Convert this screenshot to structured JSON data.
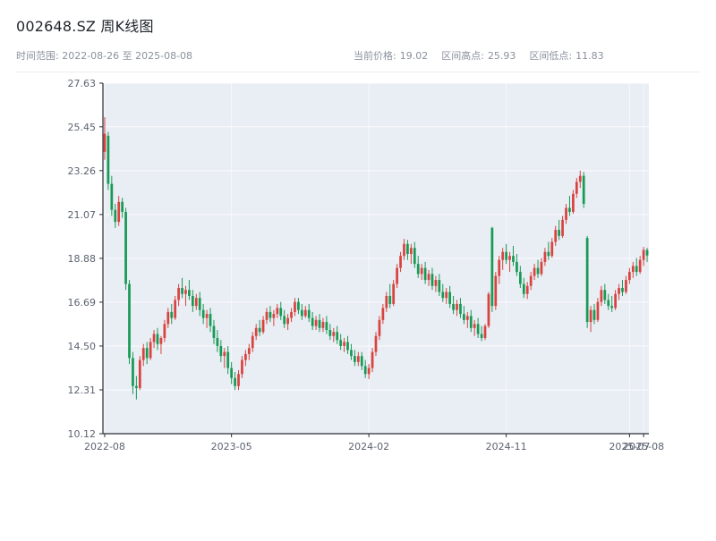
{
  "header": {
    "title": "002648.SZ 周K线图",
    "time_range": "时间范围: 2022-08-26 至 2025-08-08",
    "stats": [
      {
        "label": "当前价格:",
        "value": "19.02"
      },
      {
        "label": "区间高点:",
        "value": "25.93"
      },
      {
        "label": "区间低点:",
        "value": "11.83"
      }
    ]
  },
  "chart_data": {
    "type": "candlestick",
    "symbol": "002648.SZ",
    "title": "002648.SZ 周K线图",
    "frequency": "weekly",
    "date_start": "2022-08-26",
    "date_end": "2025-08-08",
    "current_price": 19.02,
    "range_high": 25.93,
    "range_low": 11.83,
    "y_min": 10.12,
    "y_max": 27.63,
    "y_ticks": [
      27.63,
      25.45,
      23.26,
      21.07,
      18.88,
      16.69,
      14.5,
      12.31,
      10.12
    ],
    "x_ticks": [
      {
        "index": 0,
        "label": "2022-08"
      },
      {
        "index": 36,
        "label": "2023-05"
      },
      {
        "index": 75,
        "label": "2024-02"
      },
      {
        "index": 114,
        "label": "2024-11"
      },
      {
        "index": 149,
        "label": "2025-07"
      },
      {
        "index": 153,
        "label": "2025-08"
      }
    ],
    "colors": {
      "up": "#d9433f",
      "down": "#179a55",
      "plot_bg": "#e9edf4",
      "grid": "#ffffff",
      "axis": "#2a2e34",
      "tick_text": "#5b6270"
    },
    "legend": {
      "up_means": "close >= open (red)",
      "down_means": "close < open (green)"
    },
    "candles": [
      [
        24.2,
        25.93,
        23.8,
        25.1
      ],
      [
        25.0,
        25.2,
        22.3,
        22.6
      ],
      [
        22.6,
        23.0,
        21.0,
        21.3
      ],
      [
        21.3,
        21.6,
        20.4,
        20.7
      ],
      [
        20.7,
        22.0,
        20.5,
        21.7
      ],
      [
        21.7,
        21.9,
        20.9,
        21.2
      ],
      [
        21.2,
        21.4,
        17.3,
        17.6
      ],
      [
        17.6,
        17.8,
        13.6,
        13.9
      ],
      [
        13.9,
        14.2,
        12.1,
        12.5
      ],
      [
        12.5,
        13.0,
        11.83,
        12.4
      ],
      [
        12.4,
        14.0,
        12.3,
        13.8
      ],
      [
        13.8,
        14.6,
        13.5,
        14.4
      ],
      [
        14.4,
        14.7,
        13.6,
        13.9
      ],
      [
        13.9,
        14.9,
        13.8,
        14.7
      ],
      [
        14.7,
        15.3,
        14.4,
        15.1
      ],
      [
        15.1,
        15.4,
        14.3,
        14.6
      ],
      [
        14.6,
        15.0,
        14.1,
        14.9
      ],
      [
        14.9,
        15.8,
        14.7,
        15.6
      ],
      [
        15.6,
        16.4,
        15.4,
        16.2
      ],
      [
        16.2,
        16.6,
        15.6,
        15.9
      ],
      [
        15.9,
        17.0,
        15.8,
        16.8
      ],
      [
        16.8,
        17.6,
        16.5,
        17.4
      ],
      [
        17.4,
        17.9,
        16.9,
        17.1
      ],
      [
        17.1,
        17.5,
        16.5,
        17.3
      ],
      [
        17.3,
        17.8,
        16.8,
        17.0
      ],
      [
        17.0,
        17.3,
        16.2,
        16.5
      ],
      [
        16.5,
        17.1,
        16.3,
        16.9
      ],
      [
        16.9,
        17.2,
        16.0,
        16.3
      ],
      [
        16.3,
        16.6,
        15.6,
        15.9
      ],
      [
        15.9,
        16.3,
        15.4,
        16.1
      ],
      [
        16.1,
        16.4,
        15.2,
        15.5
      ],
      [
        15.5,
        15.8,
        14.6,
        14.9
      ],
      [
        14.9,
        15.3,
        14.2,
        14.5
      ],
      [
        14.5,
        14.8,
        13.7,
        14.0
      ],
      [
        14.0,
        14.4,
        13.4,
        14.2
      ],
      [
        14.2,
        14.5,
        13.1,
        13.4
      ],
      [
        13.4,
        13.7,
        12.6,
        12.9
      ],
      [
        12.9,
        13.2,
        12.3,
        12.5
      ],
      [
        12.5,
        13.3,
        12.3,
        13.1
      ],
      [
        13.1,
        14.0,
        12.9,
        13.8
      ],
      [
        13.8,
        14.3,
        13.5,
        14.1
      ],
      [
        14.1,
        14.6,
        13.8,
        14.4
      ],
      [
        14.4,
        15.2,
        14.2,
        15.0
      ],
      [
        15.0,
        15.6,
        14.8,
        15.4
      ],
      [
        15.4,
        15.8,
        15.0,
        15.2
      ],
      [
        15.2,
        16.0,
        15.1,
        15.8
      ],
      [
        15.8,
        16.4,
        15.6,
        16.2
      ],
      [
        16.2,
        16.5,
        15.7,
        15.9
      ],
      [
        15.9,
        16.3,
        15.5,
        16.1
      ],
      [
        16.1,
        16.6,
        15.9,
        16.4
      ],
      [
        16.4,
        16.7,
        15.8,
        16.0
      ],
      [
        16.0,
        16.3,
        15.4,
        15.6
      ],
      [
        15.6,
        16.1,
        15.3,
        15.9
      ],
      [
        15.9,
        16.4,
        15.7,
        16.2
      ],
      [
        16.2,
        16.9,
        16.0,
        16.7
      ],
      [
        16.7,
        16.9,
        16.1,
        16.3
      ],
      [
        16.3,
        16.6,
        15.8,
        16.0
      ],
      [
        16.0,
        16.5,
        15.9,
        16.3
      ],
      [
        16.3,
        16.6,
        15.7,
        15.9
      ],
      [
        15.9,
        16.2,
        15.3,
        15.5
      ],
      [
        15.5,
        16.0,
        15.3,
        15.8
      ],
      [
        15.8,
        16.1,
        15.2,
        15.4
      ],
      [
        15.4,
        15.9,
        15.2,
        15.7
      ],
      [
        15.7,
        16.0,
        15.1,
        15.3
      ],
      [
        15.3,
        15.6,
        14.8,
        15.0
      ],
      [
        15.0,
        15.4,
        14.7,
        15.2
      ],
      [
        15.2,
        15.5,
        14.6,
        14.8
      ],
      [
        14.8,
        15.1,
        14.3,
        14.5
      ],
      [
        14.5,
        14.9,
        14.2,
        14.7
      ],
      [
        14.7,
        15.0,
        14.1,
        14.3
      ],
      [
        14.3,
        14.6,
        13.8,
        14.0
      ],
      [
        14.0,
        14.3,
        13.5,
        13.7
      ],
      [
        13.7,
        14.2,
        13.5,
        14.0
      ],
      [
        14.0,
        14.2,
        13.3,
        13.5
      ],
      [
        13.5,
        13.8,
        12.9,
        13.1
      ],
      [
        13.1,
        13.6,
        12.85,
        13.4
      ],
      [
        13.4,
        14.4,
        13.2,
        14.2
      ],
      [
        14.2,
        15.2,
        14.0,
        15.0
      ],
      [
        15.0,
        16.0,
        14.8,
        15.8
      ],
      [
        15.8,
        16.6,
        15.6,
        16.4
      ],
      [
        16.4,
        17.2,
        16.2,
        17.0
      ],
      [
        17.0,
        17.6,
        16.4,
        16.6
      ],
      [
        16.6,
        17.8,
        16.5,
        17.6
      ],
      [
        17.6,
        18.6,
        17.4,
        18.4
      ],
      [
        18.4,
        19.2,
        18.2,
        19.0
      ],
      [
        19.0,
        19.85,
        18.8,
        19.6
      ],
      [
        19.6,
        19.8,
        18.8,
        19.1
      ],
      [
        19.1,
        19.6,
        18.6,
        19.4
      ],
      [
        19.4,
        19.7,
        18.4,
        18.6
      ],
      [
        18.6,
        19.0,
        17.9,
        18.1
      ],
      [
        18.1,
        18.6,
        17.8,
        18.4
      ],
      [
        18.4,
        18.7,
        17.6,
        17.8
      ],
      [
        17.8,
        18.3,
        17.5,
        18.1
      ],
      [
        18.1,
        18.4,
        17.3,
        17.5
      ],
      [
        17.5,
        18.0,
        17.2,
        17.8
      ],
      [
        17.8,
        18.1,
        17.0,
        17.2
      ],
      [
        17.2,
        17.6,
        16.7,
        16.9
      ],
      [
        16.9,
        17.4,
        16.6,
        17.2
      ],
      [
        17.2,
        17.5,
        16.4,
        16.6
      ],
      [
        16.6,
        17.0,
        16.1,
        16.3
      ],
      [
        16.3,
        16.8,
        16.0,
        16.6
      ],
      [
        16.6,
        16.9,
        15.9,
        16.1
      ],
      [
        16.1,
        16.5,
        15.6,
        15.8
      ],
      [
        15.8,
        16.2,
        15.4,
        16.0
      ],
      [
        16.0,
        16.3,
        15.2,
        15.4
      ],
      [
        15.4,
        15.8,
        15.0,
        15.6
      ],
      [
        15.6,
        15.9,
        14.9,
        15.1
      ],
      [
        15.1,
        15.5,
        14.75,
        14.9
      ],
      [
        14.9,
        15.6,
        14.8,
        15.5
      ],
      [
        15.5,
        17.2,
        15.4,
        17.1
      ],
      [
        20.4,
        20.45,
        16.2,
        16.5
      ],
      [
        16.5,
        18.2,
        16.3,
        18.0
      ],
      [
        18.0,
        19.0,
        17.6,
        18.8
      ],
      [
        18.8,
        19.4,
        18.3,
        19.2
      ],
      [
        19.2,
        19.6,
        18.6,
        18.8
      ],
      [
        18.8,
        19.2,
        18.2,
        19.0
      ],
      [
        19.0,
        19.5,
        18.5,
        18.7
      ],
      [
        18.7,
        19.1,
        18.0,
        18.2
      ],
      [
        18.2,
        18.5,
        17.4,
        17.6
      ],
      [
        17.6,
        17.9,
        16.9,
        17.1
      ],
      [
        17.1,
        17.7,
        16.85,
        17.5
      ],
      [
        17.5,
        18.2,
        17.3,
        18.0
      ],
      [
        18.0,
        18.6,
        17.8,
        18.4
      ],
      [
        18.4,
        18.8,
        17.9,
        18.1
      ],
      [
        18.1,
        18.9,
        18.0,
        18.7
      ],
      [
        18.7,
        19.4,
        18.5,
        19.2
      ],
      [
        19.2,
        19.7,
        18.8,
        19.0
      ],
      [
        19.0,
        19.9,
        18.9,
        19.7
      ],
      [
        19.7,
        20.5,
        19.5,
        20.3
      ],
      [
        20.3,
        20.8,
        19.8,
        20.0
      ],
      [
        20.0,
        21.0,
        19.9,
        20.8
      ],
      [
        20.8,
        21.6,
        20.6,
        21.4
      ],
      [
        21.4,
        22.0,
        21.0,
        21.2
      ],
      [
        21.2,
        22.3,
        21.1,
        22.1
      ],
      [
        22.1,
        22.9,
        21.9,
        22.7
      ],
      [
        22.7,
        23.26,
        22.4,
        23.0
      ],
      [
        23.0,
        23.2,
        21.4,
        21.6
      ],
      [
        19.9,
        20.0,
        15.4,
        15.7
      ],
      [
        15.7,
        16.5,
        15.2,
        16.3
      ],
      [
        16.3,
        16.6,
        15.6,
        15.8
      ],
      [
        15.8,
        16.9,
        15.7,
        16.7
      ],
      [
        16.7,
        17.5,
        16.5,
        17.3
      ],
      [
        17.3,
        17.6,
        16.6,
        16.8
      ],
      [
        16.8,
        17.1,
        16.3,
        16.5
      ],
      [
        16.5,
        17.0,
        16.2,
        16.4
      ],
      [
        16.4,
        17.3,
        16.3,
        17.1
      ],
      [
        17.1,
        17.6,
        16.8,
        17.4
      ],
      [
        17.4,
        17.8,
        17.0,
        17.2
      ],
      [
        17.2,
        18.0,
        17.1,
        17.8
      ],
      [
        17.8,
        18.4,
        17.6,
        18.2
      ],
      [
        18.2,
        18.7,
        17.9,
        18.5
      ],
      [
        18.5,
        18.9,
        18.0,
        18.2
      ],
      [
        18.2,
        19.0,
        18.1,
        18.8
      ],
      [
        18.8,
        19.45,
        18.5,
        19.3
      ],
      [
        19.3,
        19.4,
        18.7,
        19.02
      ]
    ]
  }
}
